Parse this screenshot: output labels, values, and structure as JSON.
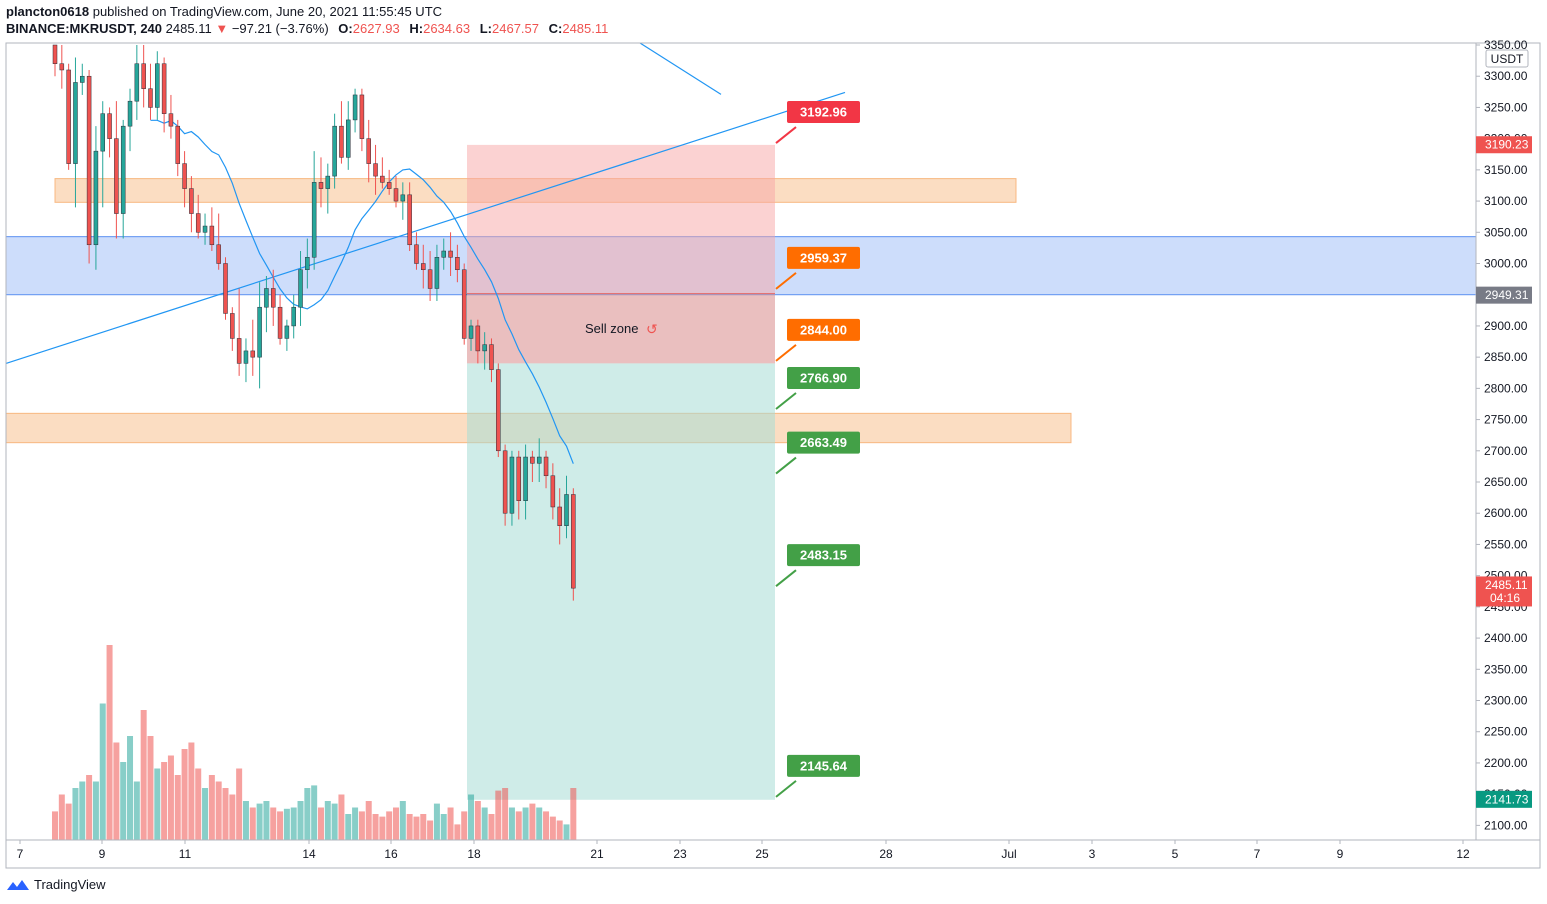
{
  "header": {
    "publisher": "plancton0618",
    "published_text": "published on TradingView.com, June 20, 2021 11:55:45 UTC",
    "symbol": "BINANCE:MKRUSDT, 240",
    "last": "2485.11",
    "change": "−97.21 (−3.76%)",
    "o_label": "O:",
    "o": "2627.93",
    "h_label": "H:",
    "h": "2634.63",
    "l_label": "L:",
    "l": "2467.57",
    "c_label": "C:",
    "c": "2485.11"
  },
  "footer": {
    "brand": "TradingView"
  },
  "colors": {
    "up": "#26a69a",
    "down": "#ef5350",
    "ma": "#2196f3",
    "orange_zone": "#f7b377",
    "blue_zone": "#4d86f0",
    "stop_area": "#f7a6a6",
    "target_area": "#a7dcd6"
  },
  "chart_data": {
    "type": "candlestick",
    "currency": "USDT",
    "y_ticks": [
      3350,
      3300,
      3250,
      3200,
      3150,
      3100,
      3050,
      3000,
      2950,
      2900,
      2850,
      2800,
      2750,
      2700,
      2650,
      2600,
      2550,
      2500,
      2450,
      2400,
      2350,
      2300,
      2250,
      2200,
      2150,
      2100
    ],
    "x_ticks": [
      "7",
      "9",
      "11",
      "14",
      "16",
      "18",
      "21",
      "23",
      "25",
      "28",
      "Jul",
      "3",
      "5",
      "7",
      "9",
      "12"
    ],
    "ylim": [
      2080,
      3350
    ],
    "price_labels": [
      {
        "value": "3190.23",
        "price": 3190.23,
        "color": "#ef5350"
      },
      {
        "value": "2949.31",
        "price": 2949.31,
        "color": "#787b86"
      },
      {
        "value": "2485.11",
        "price": 2485.11,
        "color": "#ef5350",
        "sub": "04:16"
      },
      {
        "value": "2141.73",
        "price": 2141.73,
        "color": "#089981"
      }
    ],
    "levels": [
      {
        "value": "3192.96",
        "price": 3192.96,
        "color": "#f23645"
      },
      {
        "value": "2959.37",
        "price": 2959.37,
        "color": "#ff6d00"
      },
      {
        "value": "2844.00",
        "price": 2844.0,
        "color": "#ff6d00"
      },
      {
        "value": "2766.90",
        "price": 2766.9,
        "color": "#43a047"
      },
      {
        "value": "2663.49",
        "price": 2663.49,
        "color": "#43a047"
      },
      {
        "value": "2483.15",
        "price": 2483.15,
        "color": "#43a047"
      },
      {
        "value": "2145.64",
        "price": 2145.64,
        "color": "#43a047"
      }
    ],
    "zones": [
      {
        "name": "orange-zone-upper",
        "from": 3098,
        "to": 3136
      },
      {
        "name": "blue-zone",
        "from": 2950,
        "to": 3043
      },
      {
        "name": "orange-zone-lower",
        "from": 2713,
        "to": 2760
      }
    ],
    "position": {
      "entry_top": 2952,
      "entry_bottom": 2840,
      "stop": 3190,
      "target": 2141
    },
    "annotation": "Sell zone",
    "candles": [
      [
        3400,
        3420,
        3300,
        3320
      ],
      [
        3320,
        3360,
        3280,
        3310
      ],
      [
        3310,
        3320,
        3150,
        3160
      ],
      [
        3160,
        3330,
        3090,
        3290
      ],
      [
        3290,
        3320,
        3270,
        3300
      ],
      [
        3300,
        3310,
        3000,
        3030
      ],
      [
        3030,
        3220,
        2990,
        3180
      ],
      [
        3180,
        3260,
        3090,
        3240
      ],
      [
        3240,
        3250,
        3170,
        3200
      ],
      [
        3200,
        3260,
        3040,
        3080
      ],
      [
        3080,
        3230,
        3040,
        3220
      ],
      [
        3220,
        3280,
        3180,
        3260
      ],
      [
        3260,
        3360,
        3230,
        3320
      ],
      [
        3320,
        3360,
        3250,
        3280
      ],
      [
        3280,
        3320,
        3230,
        3250
      ],
      [
        3250,
        3340,
        3230,
        3320
      ],
      [
        3320,
        3330,
        3210,
        3240
      ],
      [
        3240,
        3270,
        3200,
        3220
      ],
      [
        3220,
        3230,
        3140,
        3160
      ],
      [
        3160,
        3180,
        3090,
        3120
      ],
      [
        3120,
        3140,
        3050,
        3080
      ],
      [
        3080,
        3110,
        3040,
        3050
      ],
      [
        3050,
        3080,
        3030,
        3060
      ],
      [
        3060,
        3090,
        3020,
        3030
      ],
      [
        3030,
        3080,
        2990,
        3000
      ],
      [
        3000,
        3010,
        2910,
        2920
      ],
      [
        2920,
        2930,
        2860,
        2880
      ],
      [
        2880,
        2960,
        2820,
        2840
      ],
      [
        2840,
        2880,
        2810,
        2860
      ],
      [
        2860,
        2910,
        2820,
        2850
      ],
      [
        2850,
        2970,
        2800,
        2930
      ],
      [
        2930,
        2980,
        2890,
        2960
      ],
      [
        2960,
        2990,
        2900,
        2930
      ],
      [
        2930,
        2950,
        2870,
        2880
      ],
      [
        2880,
        2910,
        2860,
        2900
      ],
      [
        2900,
        2950,
        2880,
        2930
      ],
      [
        2930,
        3020,
        2900,
        2990
      ],
      [
        2990,
        3040,
        2960,
        3010
      ],
      [
        3010,
        3180,
        2990,
        3130
      ],
      [
        3130,
        3170,
        3090,
        3120
      ],
      [
        3120,
        3160,
        3080,
        3140
      ],
      [
        3140,
        3240,
        3120,
        3220
      ],
      [
        3220,
        3260,
        3160,
        3170
      ],
      [
        3170,
        3260,
        3150,
        3230
      ],
      [
        3230,
        3280,
        3210,
        3270
      ],
      [
        3270,
        3280,
        3180,
        3200
      ],
      [
        3200,
        3230,
        3130,
        3160
      ],
      [
        3160,
        3190,
        3110,
        3140
      ],
      [
        3140,
        3170,
        3120,
        3130
      ],
      [
        3130,
        3150,
        3110,
        3120
      ],
      [
        3120,
        3140,
        3090,
        3100
      ],
      [
        3100,
        3130,
        3070,
        3110
      ],
      [
        3110,
        3130,
        3020,
        3030
      ],
      [
        3030,
        3050,
        2990,
        3000
      ],
      [
        3000,
        3030,
        2960,
        2990
      ],
      [
        2990,
        3020,
        2940,
        2960
      ],
      [
        2960,
        3030,
        2940,
        3010
      ],
      [
        3010,
        3040,
        2990,
        3020
      ],
      [
        3020,
        3050,
        2980,
        3010
      ],
      [
        3010,
        3030,
        2970,
        2990
      ],
      [
        2990,
        3000,
        2870,
        2880
      ],
      [
        2880,
        2910,
        2860,
        2900
      ],
      [
        2900,
        2910,
        2840,
        2860
      ],
      [
        2860,
        2890,
        2830,
        2870
      ],
      [
        2870,
        2880,
        2810,
        2830
      ],
      [
        2830,
        2840,
        2690,
        2700
      ],
      [
        2700,
        2710,
        2580,
        2600
      ],
      [
        2600,
        2700,
        2580,
        2690
      ],
      [
        2690,
        2700,
        2590,
        2620
      ],
      [
        2620,
        2710,
        2590,
        2690
      ],
      [
        2690,
        2700,
        2650,
        2680
      ],
      [
        2680,
        2720,
        2650,
        2690
      ],
      [
        2690,
        2700,
        2640,
        2660
      ],
      [
        2660,
        2680,
        2590,
        2610
      ],
      [
        2610,
        2640,
        2550,
        2580
      ],
      [
        2580,
        2660,
        2560,
        2630
      ],
      [
        2630,
        2640,
        2460,
        2480
      ]
    ]
  }
}
